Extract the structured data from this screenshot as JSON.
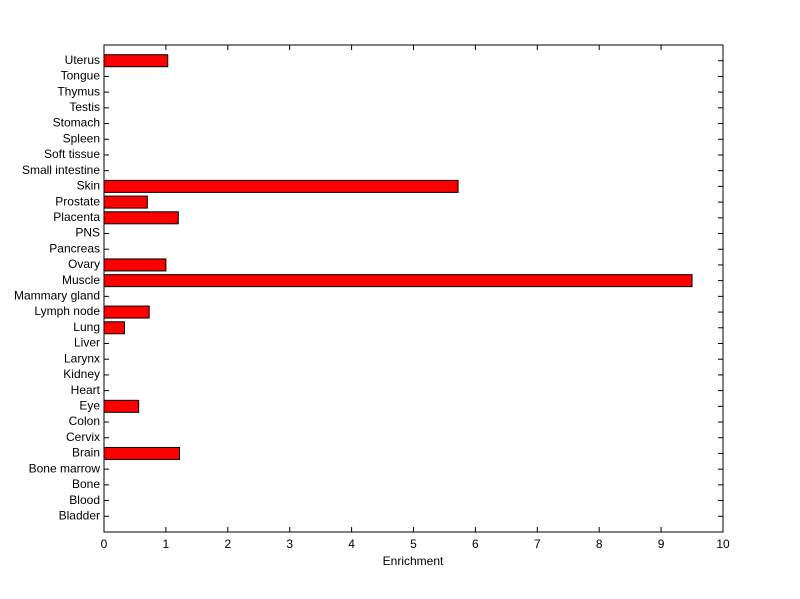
{
  "chart_data": {
    "type": "hbar",
    "x_label": "Enrichment",
    "categories": [
      "Uterus",
      "Tongue",
      "Thymus",
      "Testis",
      "Stomach",
      "Spleen",
      "Soft tissue",
      "Small intestine",
      "Skin",
      "Prostate",
      "Placenta",
      "PNS",
      "Pancreas",
      "Ovary",
      "Muscle",
      "Mammary gland",
      "Lymph node",
      "Lung",
      "Liver",
      "Larynx",
      "Kidney",
      "Heart",
      "Eye",
      "Colon",
      "Cervix",
      "Brain",
      "Bone marrow",
      "Bone",
      "Blood",
      "Bladder"
    ],
    "values": [
      1.03,
      0,
      0,
      0,
      0,
      0,
      0,
      0,
      5.72,
      0.7,
      1.2,
      0,
      0,
      1.0,
      9.5,
      0,
      0.73,
      0.33,
      0,
      0,
      0,
      0,
      0.56,
      0,
      0,
      1.22,
      0,
      0,
      0,
      0
    ],
    "color": "#ff0000",
    "xlim": [
      0,
      10
    ],
    "xticks": [
      0,
      1,
      2,
      3,
      4,
      5,
      6,
      7,
      8,
      9,
      10
    ]
  }
}
